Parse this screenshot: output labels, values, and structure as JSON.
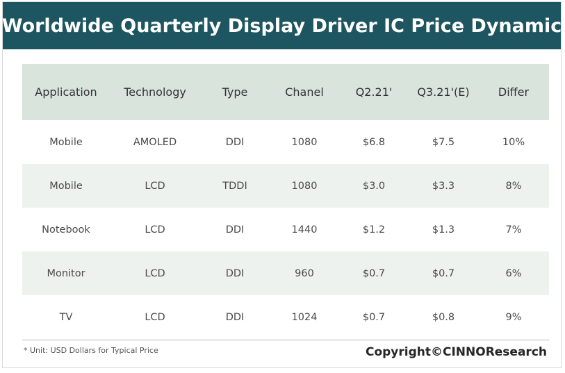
{
  "title": "Worldwide Quarterly Display Driver IC Price Dynamic",
  "footnote": "* Unit:  USD Dollars for Typical Price",
  "copyright": "Copyright©CINNOResearch",
  "colors": {
    "banner": "#1d5660",
    "header_row": "#d8e4dc",
    "striped_row": "#edf2ee"
  },
  "chart_data": {
    "type": "table",
    "title": "Worldwide Quarterly Display Driver IC Price Dynamic",
    "columns": [
      "Application",
      "Technology",
      "Type",
      "Chanel",
      "Q2.21'",
      "Q3.21'(E)",
      "Differ"
    ],
    "rows": [
      [
        "Mobile",
        "AMOLED",
        "DDI",
        "1080",
        "$6.8",
        "$7.5",
        "10%"
      ],
      [
        "Mobile",
        "LCD",
        "TDDI",
        "1080",
        "$3.0",
        "$3.3",
        "8%"
      ],
      [
        "Notebook",
        "LCD",
        "DDI",
        "1440",
        "$1.2",
        "$1.3",
        "7%"
      ],
      [
        "Monitor",
        "LCD",
        "DDI",
        "960",
        "$0.7",
        "$0.7",
        "6%"
      ],
      [
        "TV",
        "LCD",
        "DDI",
        "1024",
        "$0.7",
        "$0.8",
        "9%"
      ]
    ]
  }
}
